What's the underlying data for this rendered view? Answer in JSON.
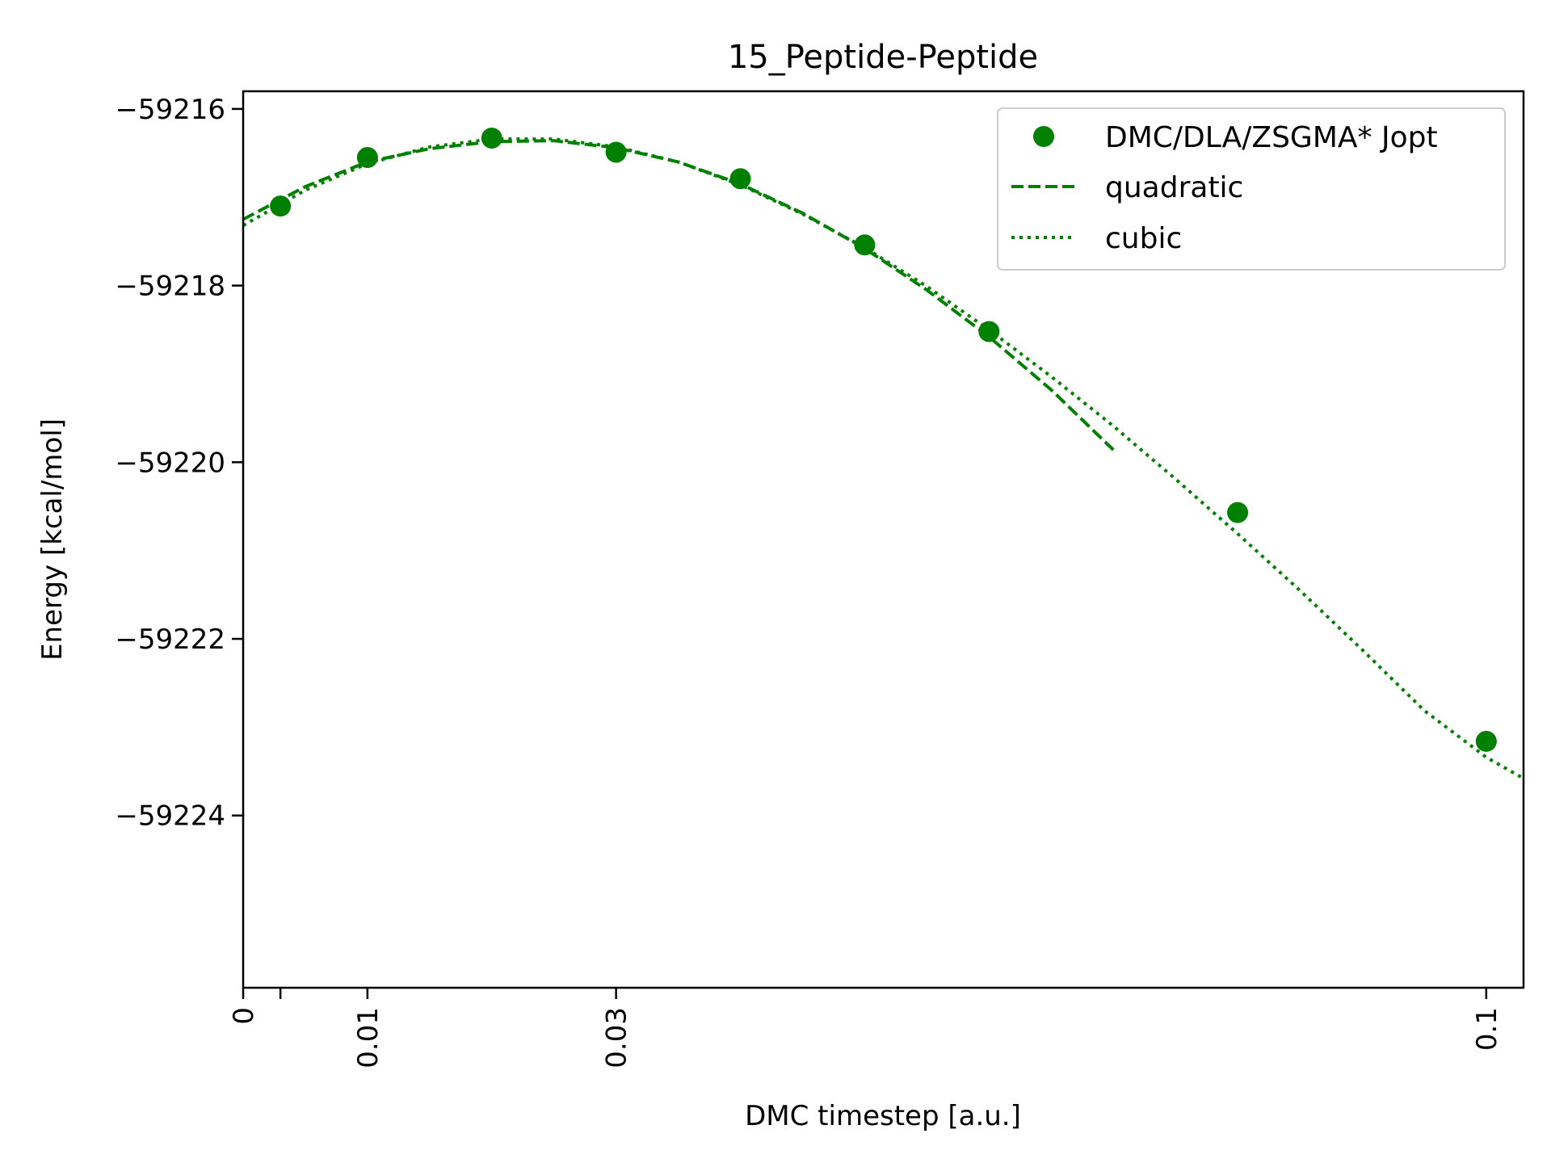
{
  "chart_data": {
    "type": "line",
    "title": "15_Peptide-Peptide",
    "xlabel": "DMC timestep [a.u.]",
    "ylabel": "Energy [kcal/mol]",
    "xlim": [
      0,
      0.103
    ],
    "ylim": [
      -59225.95,
      -59215.8
    ],
    "xticks": [
      0,
      0.003,
      0.01,
      0.03,
      0.1
    ],
    "xtick_labels": [
      "0",
      "",
      "0.01",
      "0.03",
      "0.1"
    ],
    "yticks": [
      -59216,
      -59218,
      -59220,
      -59222,
      -59224
    ],
    "ytick_labels": [
      "−59216",
      "−59218",
      "−59220",
      "−59222",
      "−59224"
    ],
    "color": "#008000",
    "legend_position": "top-right",
    "grid": false,
    "series": [
      {
        "name": "DMC/DLA/ZSGMA* Jopt",
        "style": "markers",
        "x": [
          0.003,
          0.01,
          0.02,
          0.03,
          0.04,
          0.05,
          0.06,
          0.08,
          0.1
        ],
        "y": [
          -59217.1,
          -59216.55,
          -59216.33,
          -59216.49,
          -59216.79,
          -59217.54,
          -59218.52,
          -59220.57,
          -59223.16
        ]
      },
      {
        "name": "quadratic",
        "style": "dashed",
        "x": [
          0,
          0.005,
          0.01,
          0.015,
          0.02,
          0.025,
          0.03,
          0.035,
          0.04,
          0.045,
          0.05,
          0.055,
          0.06,
          0.065,
          0.07
        ],
        "y": [
          -59217.25,
          -59216.88,
          -59216.6,
          -59216.45,
          -59216.37,
          -59216.36,
          -59216.44,
          -59216.6,
          -59216.85,
          -59217.18,
          -59217.58,
          -59218.05,
          -59218.58,
          -59219.18,
          -59219.86
        ]
      },
      {
        "name": "cubic",
        "style": "dotted",
        "x": [
          0,
          0.005,
          0.01,
          0.015,
          0.02,
          0.025,
          0.03,
          0.035,
          0.04,
          0.045,
          0.05,
          0.055,
          0.06,
          0.065,
          0.07,
          0.075,
          0.08,
          0.085,
          0.09,
          0.095,
          0.1,
          0.103
        ],
        "y": [
          -59217.32,
          -59216.92,
          -59216.62,
          -59216.43,
          -59216.34,
          -59216.34,
          -59216.43,
          -59216.6,
          -59216.86,
          -59217.19,
          -59217.57,
          -59218.01,
          -59218.5,
          -59219.03,
          -59219.59,
          -59220.19,
          -59220.81,
          -59221.45,
          -59222.12,
          -59222.81,
          -59223.34,
          -59223.58
        ]
      }
    ]
  }
}
